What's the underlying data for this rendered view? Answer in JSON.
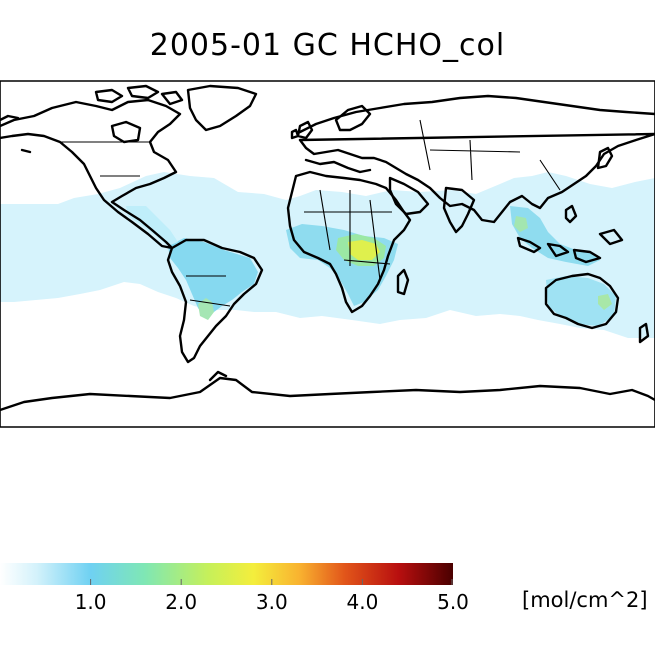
{
  "title": "2005-01 GC HCHO_col",
  "colorbar": {
    "ticks": [
      "1.0",
      "2.0",
      "3.0",
      "4.0",
      "5.0"
    ],
    "tick_values": [
      1.0,
      2.0,
      3.0,
      4.0,
      5.0
    ],
    "range": [
      0.0,
      5.0
    ],
    "units": "[mol/cm^2]",
    "colors": [
      "#ffffff",
      "#d4f2fb",
      "#6fd1f2",
      "#7fe7b4",
      "#e7f03c",
      "#f9b330",
      "#e2561a",
      "#b80f0f",
      "#4a0000"
    ]
  },
  "map": {
    "projection": "equirectangular",
    "ocean_color": "#ffffff",
    "background_band_color": "#d6f3fc",
    "land_low_color": "#c9eefb",
    "elevated_color": "#7fd8ef",
    "hotspot_colors": [
      "#8ee7a8",
      "#d9f04a"
    ],
    "coastline_color": "#000000"
  }
}
